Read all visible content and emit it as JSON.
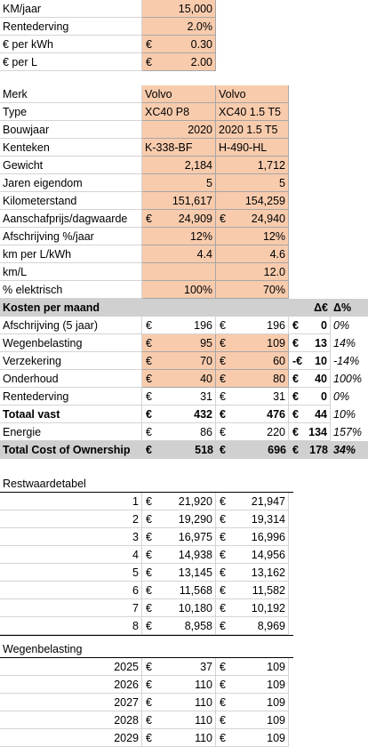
{
  "settings": [
    {
      "label": "KM/jaar",
      "value": "15,000"
    },
    {
      "label": "Rentederving",
      "value": "2.0%"
    },
    {
      "label": "€ per kWh",
      "currency": "€",
      "value": "0.30"
    },
    {
      "label": "€ per L",
      "currency": "€",
      "value": "2.00"
    }
  ],
  "cars": [
    {
      "label": "Merk",
      "a": "Volvo",
      "b": "Volvo",
      "align": "l"
    },
    {
      "label": "Type",
      "a": "XC40 P8",
      "b": "XC40 1.5 T5",
      "align": "l"
    },
    {
      "label": "Bouwjaar",
      "a": "2020",
      "b": "2020 1.5 T5",
      "align": "mixed"
    },
    {
      "label": "Kenteken",
      "a": "K-338-BF",
      "b": "H-490-HL",
      "align": "l"
    },
    {
      "label": "Gewicht",
      "a": "2,184",
      "b": "1,712",
      "align": "r"
    },
    {
      "label": "Jaren eigendom",
      "a": "5",
      "b": "5",
      "align": "r"
    },
    {
      "label": "Kilometerstand",
      "a": "151,617",
      "b": "154,259",
      "align": "r"
    },
    {
      "label": "Aanschafprijs/dagwaarde",
      "a_cur": "€",
      "a": "24,909",
      "b_cur": "€",
      "b": "24,940",
      "align": "r"
    },
    {
      "label": "Afschrijving %/jaar",
      "a": "12%",
      "b": "12%",
      "align": "r"
    },
    {
      "label": "km per L/kWh",
      "a": "4.4",
      "b": "4.6",
      "align": "r"
    },
    {
      "label": "km/L",
      "a": "",
      "b": "12.0",
      "align": "r"
    },
    {
      "label": "% elektrisch",
      "a": "100%",
      "b": "70%",
      "align": "r"
    }
  ],
  "costs": {
    "header": {
      "label": "Kosten per maand",
      "delta_eur": "Δ€",
      "delta_pct": "Δ%"
    },
    "rows": [
      {
        "label": "Afschrijving (5 jaar)",
        "a": "196",
        "b": "196",
        "sign": "€",
        "d": "0",
        "p": "0%",
        "orange": false,
        "bold": false
      },
      {
        "label": "Wegenbelasting",
        "a": "95",
        "b": "109",
        "sign": "€",
        "d": "13",
        "p": "14%",
        "orange": true,
        "bold": false
      },
      {
        "label": "Verzekering",
        "a": "70",
        "b": "60",
        "sign": "-€",
        "d": "10",
        "p": "-14%",
        "orange": true,
        "bold": false
      },
      {
        "label": "Onderhoud",
        "a": "40",
        "b": "80",
        "sign": "€",
        "d": "40",
        "p": "100%",
        "orange": true,
        "bold": false
      },
      {
        "label": "Rentederving",
        "a": "31",
        "b": "31",
        "sign": "€",
        "d": "0",
        "p": "0%",
        "orange": false,
        "bold": false
      },
      {
        "label": "Totaal vast",
        "a": "432",
        "b": "476",
        "sign": "€",
        "d": "44",
        "p": "10%",
        "orange": false,
        "bold": true
      },
      {
        "label": "Energie",
        "a": "86",
        "b": "220",
        "sign": "€",
        "d": "134",
        "p": "157%",
        "orange": false,
        "bold": false
      }
    ],
    "total": {
      "label": "Total Cost of Ownership",
      "a": "518",
      "b": "696",
      "sign": "€",
      "d": "178",
      "p": "34%"
    }
  },
  "restwaarde": {
    "title": "Restwaardetabel",
    "rows": [
      {
        "n": "1",
        "a": "21,920",
        "b": "21,947"
      },
      {
        "n": "2",
        "a": "19,290",
        "b": "19,314"
      },
      {
        "n": "3",
        "a": "16,975",
        "b": "16,996"
      },
      {
        "n": "4",
        "a": "14,938",
        "b": "14,956"
      },
      {
        "n": "5",
        "a": "13,145",
        "b": "13,162"
      },
      {
        "n": "6",
        "a": "11,568",
        "b": "11,582"
      },
      {
        "n": "7",
        "a": "10,180",
        "b": "10,192"
      },
      {
        "n": "8",
        "a": "8,958",
        "b": "8,969"
      }
    ]
  },
  "wegenbelasting": {
    "title": "Wegenbelasting",
    "rows": [
      {
        "n": "2025",
        "a": "37",
        "b": "109"
      },
      {
        "n": "2026",
        "a": "110",
        "b": "109"
      },
      {
        "n": "2027",
        "a": "110",
        "b": "109"
      },
      {
        "n": "2028",
        "a": "110",
        "b": "109"
      },
      {
        "n": "2029",
        "a": "110",
        "b": "109"
      }
    ]
  },
  "currency_symbol": "€",
  "colors": {
    "input": "#f8cbad",
    "header_band": "#d0d0d0"
  }
}
